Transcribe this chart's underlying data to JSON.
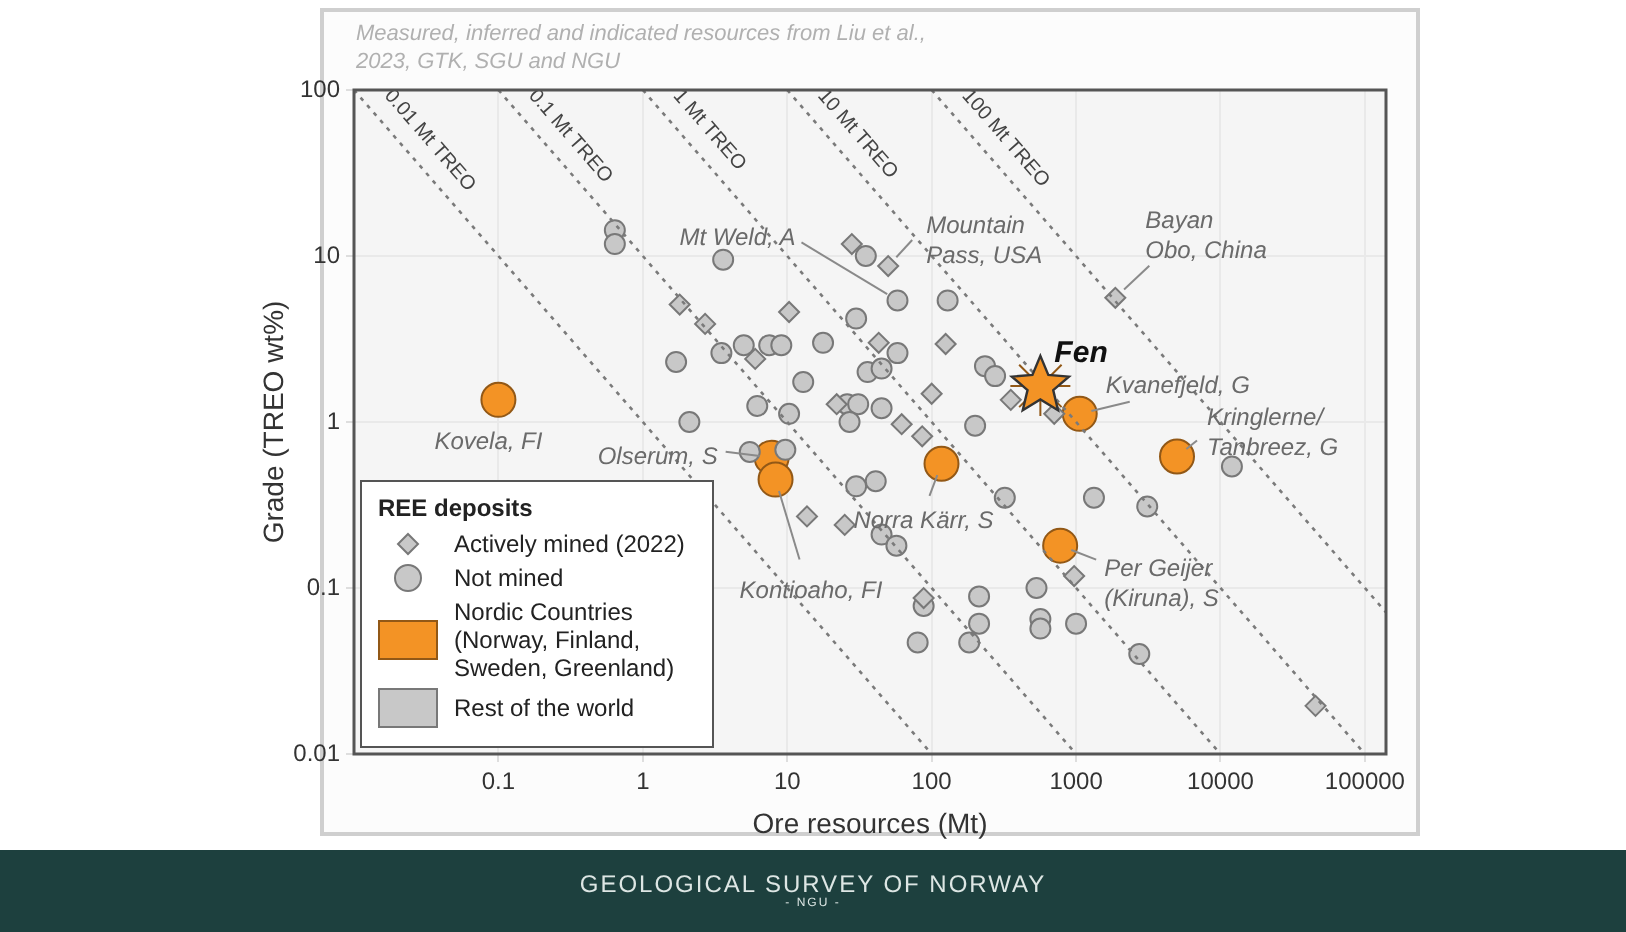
{
  "chart_data": {
    "type": "scatter",
    "xlabel": "Ore resources (Mt)",
    "ylabel": "Grade (TREO wt%)",
    "legend_title": "REE deposits",
    "log": "xy",
    "xlim": [
      0.01,
      140000
    ],
    "ylim": [
      0.01,
      100
    ],
    "xticks": [
      0.1,
      1,
      10,
      100,
      1000,
      10000,
      100000
    ],
    "yticks": [
      0.01,
      0.1,
      1,
      10,
      100
    ],
    "grid": true,
    "legend": "bottom left",
    "series": [
      {
        "name": "0.01 Mt TREO",
        "type": "line",
        "color": "#7a7a7a",
        "line_style": "dotted",
        "marker": "none",
        "x": [
          0.01,
          100
        ],
        "values": [
          100,
          0.01
        ]
      },
      {
        "name": "0.1 Mt TREO",
        "type": "line",
        "color": "#7a7a7a",
        "line_style": "dotted",
        "marker": "none",
        "x": [
          0.1,
          1000
        ],
        "values": [
          100,
          0.01
        ]
      },
      {
        "name": "1 Mt TREO",
        "type": "line",
        "color": "#7a7a7a",
        "line_style": "dotted",
        "marker": "none",
        "x": [
          1,
          10000
        ],
        "values": [
          100,
          0.01
        ]
      },
      {
        "name": "10 Mt TREO",
        "type": "line",
        "color": "#7a7a7a",
        "line_style": "dotted",
        "marker": "none",
        "x": [
          10,
          100000
        ],
        "values": [
          100,
          0.01
        ]
      },
      {
        "name": "100 Mt TREO",
        "type": "line",
        "color": "#7a7a7a",
        "line_style": "dotted",
        "marker": "none",
        "x": [
          100,
          140000
        ],
        "values": [
          100,
          0.0714
        ]
      },
      {
        "name": "Actively mined (2022)",
        "color": "#c8c8c8",
        "marker": "diamond",
        "x": [
          28,
          50,
          1.8,
          2.7,
          10.3,
          43,
          6.0,
          22,
          62,
          86,
          1870,
          125,
          353,
          100,
          706,
          970,
          88,
          45500,
          13.7,
          25
        ],
        "values": [
          11.8,
          8.7,
          5.1,
          3.9,
          4.6,
          3.0,
          2.4,
          1.28,
          0.97,
          0.82,
          5.6,
          2.95,
          1.36,
          1.48,
          1.12,
          0.118,
          0.087,
          0.0195,
          0.27,
          0.24
        ]
      },
      {
        "name": "Not mined",
        "color": "#c8c8c8",
        "marker": "circle",
        "x": [
          0.64,
          0.64,
          3.6,
          58,
          35,
          30,
          58,
          1.7,
          3.5,
          5.0,
          7.5,
          9.1,
          17.7,
          12.9,
          36,
          45,
          6.2,
          10.3,
          26,
          31,
          27,
          45,
          2.1,
          129,
          234,
          275,
          200,
          12000,
          321,
          1330,
          3110,
          213,
          532,
          88,
          213,
          566,
          566,
          1000,
          80,
          182,
          2740,
          5.5,
          9.7,
          30,
          41,
          45,
          57
        ],
        "values": [
          14.3,
          11.8,
          9.5,
          5.4,
          10,
          4.2,
          2.6,
          2.3,
          2.6,
          2.9,
          2.9,
          2.9,
          3.0,
          1.74,
          2.0,
          2.1,
          1.25,
          1.12,
          1.28,
          1.28,
          1.0,
          1.21,
          1.0,
          5.4,
          2.17,
          1.89,
          0.95,
          0.54,
          0.35,
          0.35,
          0.31,
          0.089,
          0.1,
          0.078,
          0.061,
          0.065,
          0.057,
          0.061,
          0.047,
          0.047,
          0.04,
          0.66,
          0.68,
          0.41,
          0.44,
          0.21,
          0.18
        ]
      },
      {
        "name": "Nordic Countries (Norway, Finland, Sweden, Greenland)",
        "color": "#f39325",
        "marker": "circle",
        "x": [
          0.1,
          7.8,
          8.3,
          117,
          1060,
          5000,
          776
        ],
        "values": [
          1.36,
          0.61,
          0.45,
          0.56,
          1.12,
          0.62,
          0.18
        ]
      },
      {
        "color": "#f39325",
        "marker": "star",
        "x": [
          566
        ],
        "values": [
          1.65
        ]
      },
      {
        "name": "Rest of the world",
        "color": "#c8c8c8",
        "marker": "square"
      }
    ],
    "annotations": [
      "Measured, inferred and indicated resources from Liu et al., 2023, GTK, SGU and NGU",
      "GEOLOGICAL SURVEY OF NORWAY",
      "- NGU -",
      {
        "text": "Mt Weld, A",
        "x": 58,
        "y": 5.4
      },
      {
        "text": "Mountain\nPass, USA",
        "x": 50,
        "y": 8.7
      },
      {
        "text": "Bayan\nObo, China",
        "x": 1870,
        "y": 5.6
      },
      {
        "text": "Fen",
        "x": 566,
        "y": 1.65
      },
      {
        "text": "Kvanefjeld, G",
        "x": 1060,
        "y": 1.12
      },
      {
        "text": "Kringlerne/\nTanbreez, G",
        "x": 5000,
        "y": 0.62
      },
      {
        "text": "Norra Kärr, S",
        "x": 117,
        "y": 0.56
      },
      {
        "text": "Per Geijer\n(Kiruna), S",
        "x": 776,
        "y": 0.18
      },
      {
        "text": "Olserum, S",
        "x": 7.8,
        "y": 0.61
      },
      {
        "text": "Kontioaho, FI",
        "x": 8.3,
        "y": 0.45
      },
      {
        "text": "Kovela, FI",
        "x": 0.1,
        "y": 1.36
      }
    ]
  }
}
